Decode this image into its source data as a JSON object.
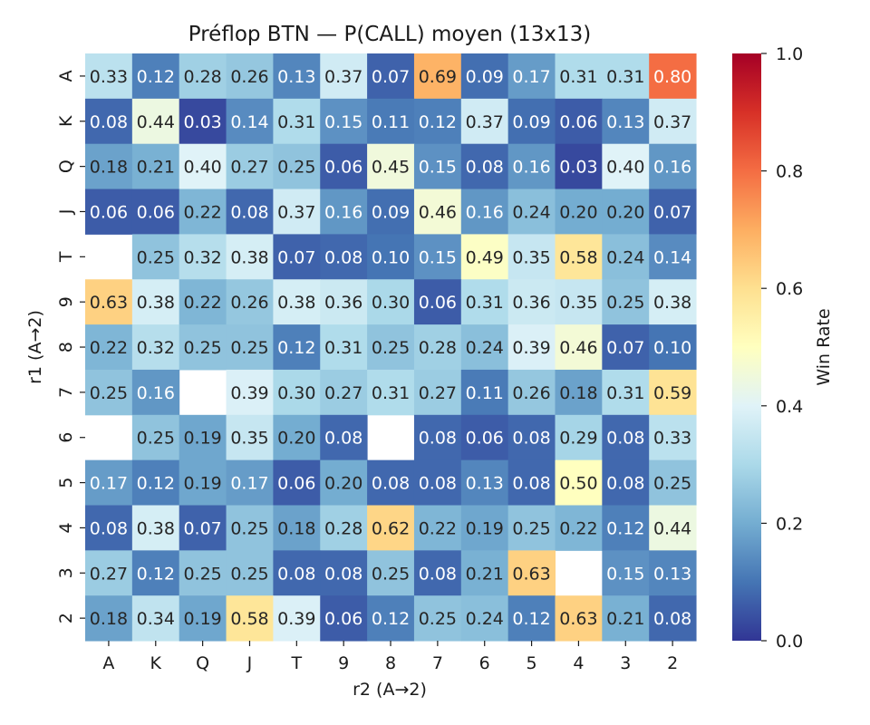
{
  "chart_data": {
    "type": "heatmap",
    "title": "Préflop BTN — P(CALL) moyen (13x13)",
    "xlabel": "r2 (A→2)",
    "ylabel": "r1 (A→2)",
    "x_categories": [
      "A",
      "K",
      "Q",
      "J",
      "T",
      "9",
      "8",
      "7",
      "6",
      "5",
      "4",
      "3",
      "2"
    ],
    "y_categories": [
      "A",
      "K",
      "Q",
      "J",
      "T",
      "9",
      "8",
      "7",
      "6",
      "5",
      "4",
      "3",
      "2"
    ],
    "values": [
      [
        0.33,
        0.12,
        0.28,
        0.26,
        0.13,
        0.37,
        0.07,
        0.69,
        0.09,
        0.17,
        0.31,
        0.31,
        0.8
      ],
      [
        0.08,
        0.44,
        0.03,
        0.14,
        0.31,
        0.15,
        0.11,
        0.12,
        0.37,
        0.09,
        0.06,
        0.13,
        0.37
      ],
      [
        0.18,
        0.21,
        0.4,
        0.27,
        0.25,
        0.06,
        0.45,
        0.15,
        0.08,
        0.16,
        0.03,
        0.4,
        0.16
      ],
      [
        0.06,
        0.06,
        0.22,
        0.08,
        0.37,
        0.16,
        0.09,
        0.46,
        0.16,
        0.24,
        0.2,
        0.2,
        0.07
      ],
      [
        null,
        0.25,
        0.32,
        0.38,
        0.07,
        0.08,
        0.1,
        0.15,
        0.49,
        0.35,
        0.58,
        0.24,
        0.14
      ],
      [
        0.63,
        0.38,
        0.22,
        0.26,
        0.38,
        0.36,
        0.3,
        0.06,
        0.31,
        0.36,
        0.35,
        0.25,
        0.38
      ],
      [
        0.22,
        0.32,
        0.25,
        0.25,
        0.12,
        0.31,
        0.25,
        0.28,
        0.24,
        0.39,
        0.46,
        0.07,
        0.1
      ],
      [
        0.25,
        0.16,
        null,
        0.39,
        0.3,
        0.27,
        0.31,
        0.27,
        0.11,
        0.26,
        0.18,
        0.31,
        0.59
      ],
      [
        null,
        0.25,
        0.19,
        0.35,
        0.2,
        0.08,
        null,
        0.08,
        0.06,
        0.08,
        0.29,
        0.08,
        0.33
      ],
      [
        0.17,
        0.12,
        0.19,
        0.17,
        0.06,
        0.2,
        0.08,
        0.08,
        0.13,
        0.08,
        0.5,
        0.08,
        0.25
      ],
      [
        0.08,
        0.38,
        0.07,
        0.25,
        0.18,
        0.28,
        0.62,
        0.22,
        0.19,
        0.25,
        0.22,
        0.12,
        0.44
      ],
      [
        0.27,
        0.12,
        0.25,
        0.25,
        0.08,
        0.08,
        0.25,
        0.08,
        0.21,
        0.63,
        null,
        0.15,
        0.13
      ],
      [
        0.18,
        0.34,
        0.19,
        0.58,
        0.39,
        0.06,
        0.12,
        0.25,
        0.24,
        0.12,
        0.63,
        0.21,
        0.08
      ]
    ],
    "colormap": "RdYlBu_r",
    "vmin": 0.0,
    "vmax": 1.0,
    "colorbar": {
      "label": "Win Rate",
      "ticks": [
        "0.0",
        "0.2",
        "0.4",
        "0.6",
        "0.8",
        "1.0"
      ]
    }
  }
}
